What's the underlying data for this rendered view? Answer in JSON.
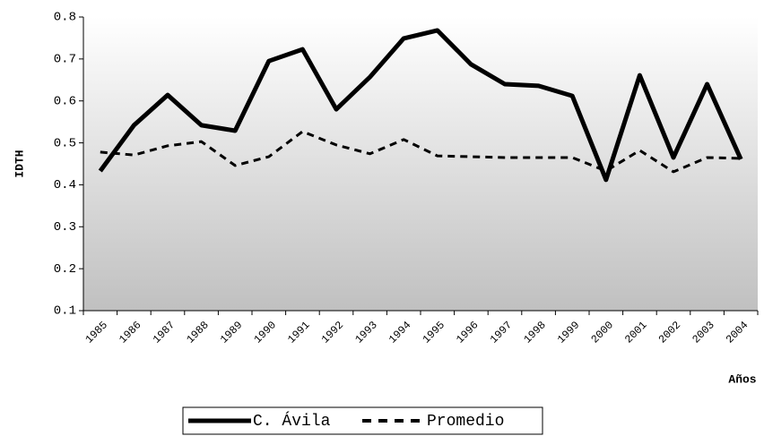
{
  "chart_data": {
    "type": "line",
    "y_label": "IDTH",
    "x_label": "Años",
    "categories": [
      "1985",
      "1986",
      "1987",
      "1988",
      "1989",
      "1990",
      "1991",
      "1992",
      "1993",
      "1994",
      "1995",
      "1996",
      "1997",
      "1998",
      "1999",
      "2000",
      "2001",
      "2002",
      "2003",
      "2004"
    ],
    "series": [
      {
        "name": "C. Ávila",
        "color": "#000000",
        "dash": "solid",
        "values": [
          0.433,
          0.542,
          0.614,
          0.542,
          0.529,
          0.695,
          0.723,
          0.58,
          0.657,
          0.749,
          0.768,
          0.687,
          0.64,
          0.636,
          0.612,
          0.412,
          0.661,
          0.465,
          0.64,
          0.461
        ]
      },
      {
        "name": "Promedio",
        "color": "#000000",
        "dash": "dashed",
        "values": [
          0.478,
          0.471,
          0.493,
          0.503,
          0.446,
          0.467,
          0.527,
          0.495,
          0.474,
          0.508,
          0.469,
          0.467,
          0.465,
          0.465,
          0.465,
          0.433,
          0.482,
          0.431,
          0.465,
          0.463
        ]
      }
    ],
    "ylim": [
      0.1,
      0.8
    ],
    "yticks": [
      0.1,
      0.2,
      0.3,
      0.4,
      0.5,
      0.6,
      0.7,
      0.8
    ],
    "legend": "bottom"
  }
}
